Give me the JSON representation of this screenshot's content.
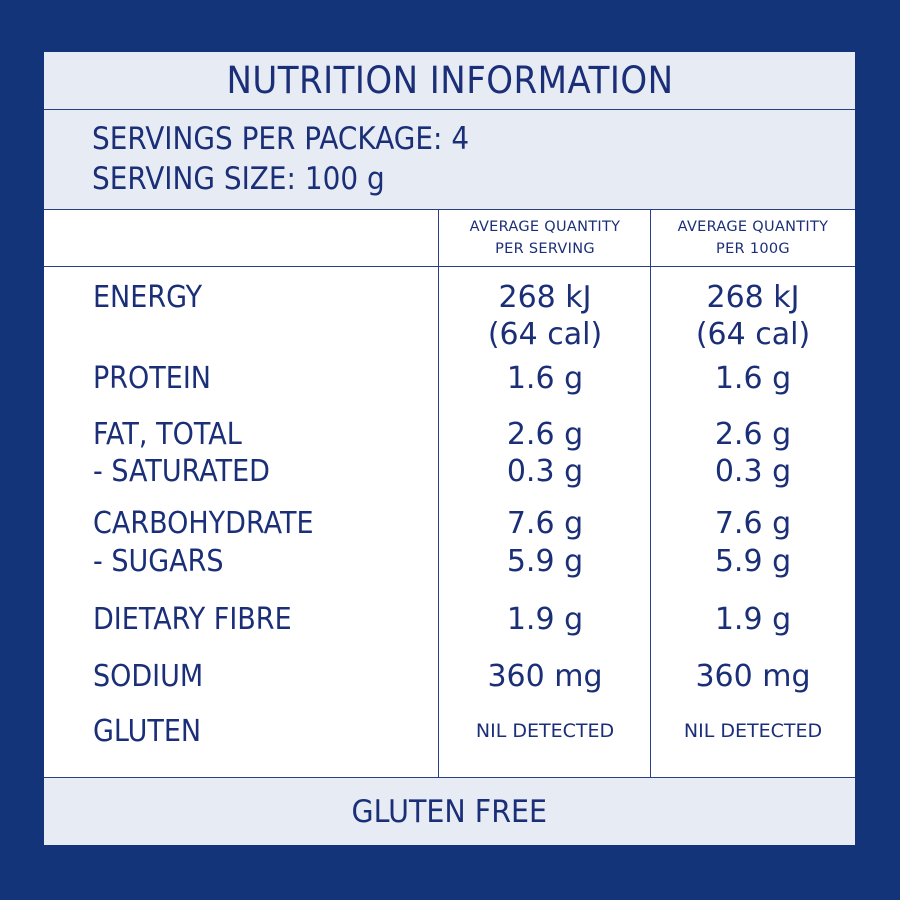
{
  "title": "NUTRITION INFORMATION",
  "servings_per_package": "SERVINGS PER PACKAGE: 4",
  "serving_size": "SERVING SIZE: 100 g",
  "columns": {
    "per_serving_line1": "AVERAGE QUANTITY",
    "per_serving_line2": "PER SERVING",
    "per_100g_line1": "AVERAGE QUANTITY",
    "per_100g_line2": "PER 100G"
  },
  "rows": {
    "energy": {
      "label": "ENERGY",
      "serving_kj": "268 kJ",
      "serving_cal": "(64 cal)",
      "per100_kj": "268 kJ",
      "per100_cal": "(64 cal)"
    },
    "protein": {
      "label": "PROTEIN",
      "serving": "1.6 g",
      "per100": "1.6 g"
    },
    "fat_total": {
      "label": "FAT, TOTAL",
      "serving": "2.6 g",
      "per100": "2.6 g"
    },
    "saturated": {
      "label": "- SATURATED",
      "serving": "0.3 g",
      "per100": "0.3 g"
    },
    "carbohydrate": {
      "label": "CARBOHYDRATE",
      "serving": "7.6 g",
      "per100": "7.6 g"
    },
    "sugars": {
      "label": "- SUGARS",
      "serving": "5.9 g",
      "per100": "5.9 g"
    },
    "fibre": {
      "label": "DIETARY FIBRE",
      "serving": "1.9 g",
      "per100": "1.9 g"
    },
    "sodium": {
      "label": "SODIUM",
      "serving": "360 mg",
      "per100": "360 mg"
    },
    "gluten": {
      "label": "GLUTEN",
      "serving": "NIL DETECTED",
      "per100": "NIL DETECTED"
    }
  },
  "footer": "GLUTEN FREE",
  "colors": {
    "background": "#14347a",
    "band": "#e7ecf4",
    "text": "#1b2f78"
  }
}
